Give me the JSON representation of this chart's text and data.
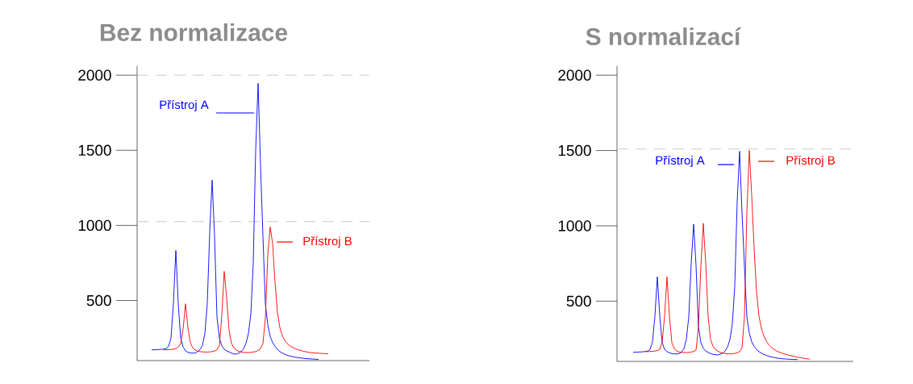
{
  "chart_data": [
    {
      "type": "line",
      "title": "Bez normalizace",
      "categories": [
        null,
        null,
        null,
        null,
        null,
        null,
        null,
        null,
        null,
        null,
        null,
        null,
        null,
        null,
        null,
        null,
        null,
        null,
        null,
        null,
        null,
        null,
        null,
        null,
        null,
        null,
        null,
        null,
        null,
        null,
        null,
        null,
        null,
        null,
        null,
        null,
        null,
        null,
        null,
        null,
        null,
        null,
        null,
        null,
        null,
        null,
        null,
        null,
        null,
        null,
        null,
        null,
        null,
        null,
        null,
        null,
        null,
        null,
        null,
        null,
        null,
        null,
        null,
        null,
        null,
        null,
        null,
        null,
        null,
        null,
        null,
        null,
        null,
        null
      ],
      "series": [
        {
          "name": "Přístroj A",
          "color": "#0000ff",
          "values": [
            172,
            172,
            173,
            174,
            175,
            177,
            180,
            195,
            250,
            480,
            833,
            480,
            250,
            190,
            165,
            155,
            151,
            150,
            150,
            160,
            175,
            200,
            280,
            480,
            950,
            1301,
            930,
            390,
            250,
            200,
            175,
            165,
            158,
            150,
            145,
            143,
            150,
            160,
            180,
            215,
            280,
            410,
            750,
            1500,
            1946,
            1400,
            930,
            480,
            340,
            260,
            220,
            195,
            175,
            160,
            150,
            142,
            136,
            131,
            127,
            124,
            121,
            119,
            117,
            115,
            113,
            112,
            111,
            110,
            109,
            108,
            null,
            null,
            null,
            null
          ]
        },
        {
          "name": "Přístroj B",
          "color": "#ff0000",
          "values": [
            null,
            null,
            null,
            null,
            null,
            172,
            172,
            173,
            174,
            176,
            180,
            190,
            215,
            310,
            478,
            320,
            220,
            185,
            170,
            163,
            160,
            158,
            157,
            157,
            158,
            160,
            164,
            172,
            200,
            400,
            694,
            520,
            300,
            215,
            185,
            170,
            162,
            158,
            155,
            154,
            154,
            155,
            157,
            160,
            167,
            180,
            215,
            380,
            800,
            989,
            880,
            620,
            420,
            320,
            265,
            235,
            215,
            200,
            190,
            182,
            175,
            170,
            165,
            161,
            158,
            155,
            153,
            151,
            150,
            149,
            148,
            147,
            146,
            145
          ]
        }
      ],
      "ylim": [
        100,
        2060
      ],
      "yticks": [
        500,
        1000,
        1500,
        2000
      ],
      "tick_labels": "y",
      "ref_lines": [
        {
          "axis": "y",
          "value": 2000,
          "color": "#cccccc",
          "line_style": "dashed"
        },
        {
          "axis": "y",
          "value": 1025,
          "color": "#cccccc",
          "line_style": "dashed"
        }
      ]
    },
    {
      "type": "line",
      "title": "S normalizací",
      "categories": [
        null,
        null,
        null,
        null,
        null,
        null,
        null,
        null,
        null,
        null,
        null,
        null,
        null,
        null,
        null,
        null,
        null,
        null,
        null,
        null,
        null,
        null,
        null,
        null,
        null,
        null,
        null,
        null,
        null,
        null,
        null,
        null,
        null,
        null,
        null,
        null,
        null,
        null,
        null,
        null,
        null,
        null,
        null,
        null,
        null,
        null,
        null,
        null,
        null,
        null,
        null,
        null,
        null,
        null,
        null,
        null,
        null,
        null,
        null,
        null,
        null,
        null,
        null,
        null,
        null,
        null,
        null,
        null,
        null,
        null,
        null,
        null,
        null,
        null
      ],
      "series": [
        {
          "name": "Přístroj A",
          "color": "#0000ff",
          "values": [
            161,
            161,
            162,
            163,
            164,
            166,
            169,
            180,
            230,
            400,
            661,
            400,
            225,
            180,
            165,
            157,
            152,
            150,
            149,
            152,
            162,
            185,
            247,
            397,
            750,
            1011,
            735,
            330,
            225,
            188,
            170,
            160,
            152,
            147,
            144,
            143,
            148,
            155,
            168,
            195,
            245,
            350,
            600,
            1160,
            1495,
            1085,
            730,
            395,
            290,
            230,
            200,
            180,
            165,
            155,
            147,
            140,
            135,
            130,
            127,
            124,
            121,
            119,
            117,
            116,
            115,
            114,
            113,
            113,
            112,
            null,
            null,
            null,
            null,
            null
          ]
        },
        {
          "name": "Přístroj B",
          "color": "#ff0000",
          "values": [
            null,
            null,
            null,
            null,
            null,
            165,
            165,
            166,
            167,
            169,
            172,
            180,
            230,
            400,
            661,
            400,
            225,
            185,
            170,
            163,
            160,
            159,
            159,
            160,
            162,
            166,
            175,
            330,
            735,
            1016,
            750,
            397,
            247,
            200,
            180,
            168,
            160,
            155,
            152,
            150,
            150,
            151,
            153,
            157,
            165,
            190,
            400,
            1085,
            1500,
            1200,
            850,
            560,
            400,
            320,
            270,
            235,
            212,
            195,
            182,
            172,
            164,
            158,
            152,
            147,
            143,
            139,
            135,
            131,
            128,
            125,
            122,
            119,
            117,
            115
          ]
        }
      ],
      "ylim": [
        100,
        2060
      ],
      "yticks": [
        500,
        1000,
        1500,
        2000
      ],
      "tick_labels": "y",
      "ref_lines": [
        {
          "axis": "y",
          "value": 1510,
          "color": "#cccccc",
          "line_style": "dashed"
        }
      ]
    }
  ]
}
